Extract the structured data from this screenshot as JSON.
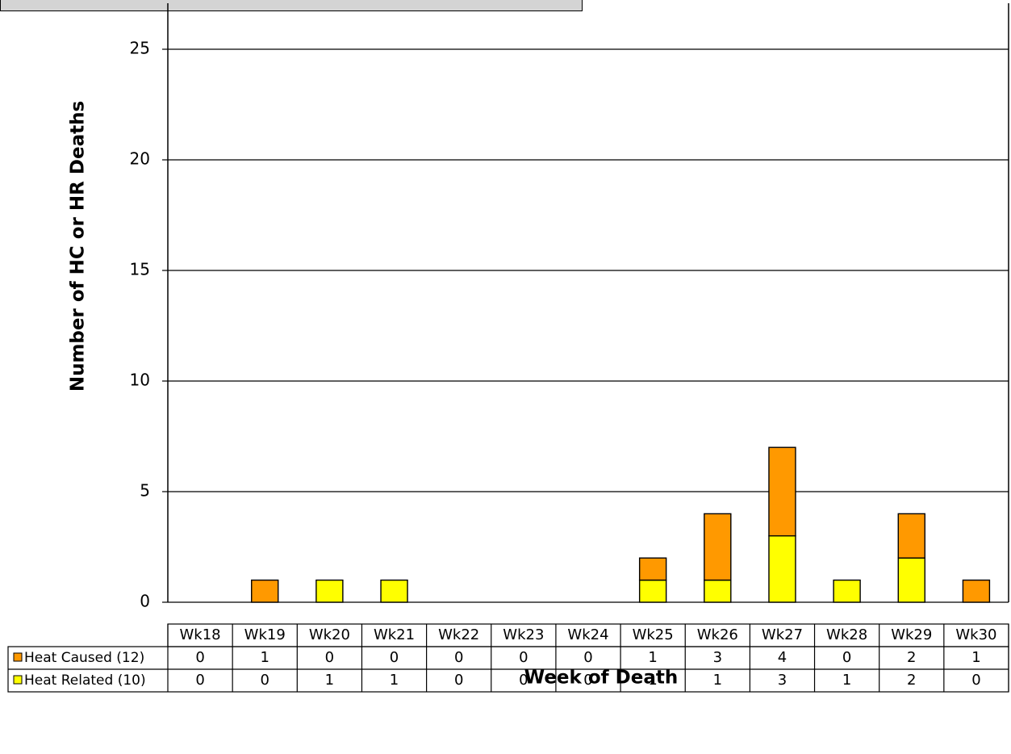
{
  "chart_data": {
    "type": "bar",
    "stacked": true,
    "categories": [
      "Wk18",
      "Wk19",
      "Wk20",
      "Wk21",
      "Wk22",
      "Wk23",
      "Wk24",
      "Wk25",
      "Wk26",
      "Wk27",
      "Wk28",
      "Wk29",
      "Wk30"
    ],
    "series": [
      {
        "name": "Heat Caused (12)",
        "color": "#ff9900",
        "values": [
          0,
          1,
          0,
          0,
          0,
          0,
          0,
          1,
          3,
          4,
          0,
          2,
          1
        ]
      },
      {
        "name": "Heat Related (10)",
        "color": "#ffff00",
        "values": [
          0,
          0,
          1,
          1,
          0,
          0,
          0,
          1,
          1,
          3,
          1,
          2,
          0
        ]
      }
    ],
    "stack_order": [
      "Heat Related (10)",
      "Heat Caused (12)"
    ],
    "xlabel": "Week of Death",
    "ylabel": "Number of HC or HR Deaths",
    "ylim": [
      0,
      25
    ],
    "yticks": [
      0,
      5,
      10,
      15,
      20,
      25
    ],
    "grid": true,
    "legend": "data-table"
  }
}
